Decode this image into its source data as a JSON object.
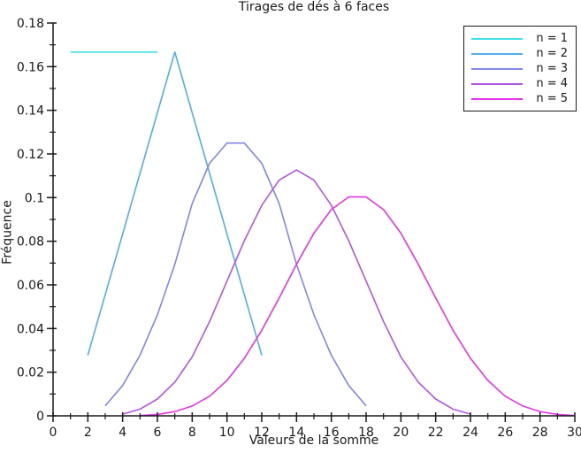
{
  "chart_data": {
    "type": "line",
    "title": "Tirages de dés à 6 faces",
    "xlabel": "Valeurs de la somme",
    "ylabel": "Fréquence",
    "xlim": [
      0,
      30
    ],
    "ylim": [
      0,
      0.18
    ],
    "grid": false,
    "legend_position": "top-right",
    "axis_color": "#1a1a1a",
    "x_tick_labels": [
      "0",
      "2",
      "4",
      "6",
      "8",
      "10",
      "12",
      "14",
      "16",
      "18",
      "20",
      "22",
      "24",
      "26",
      "28",
      "30"
    ],
    "x_minor_tick_step": 1,
    "y_tick_labels": [
      "0",
      "0.02",
      "0.04",
      "0.06",
      "0.08",
      "0.1",
      "0.12",
      "0.14",
      "0.16",
      "0.18"
    ],
    "y_minor_tick_step": 0.01,
    "series": [
      {
        "name": "n = 1",
        "color": "#40e2e6",
        "x_start": 1,
        "x_step": 1,
        "values": [
          0.16667,
          0.16667,
          0.16667,
          0.16667,
          0.16667,
          0.16667
        ]
      },
      {
        "name": "n = 2",
        "color": "#55aeec",
        "x_start": 2,
        "x_step": 1,
        "values": [
          0.02778,
          0.05556,
          0.08333,
          0.11111,
          0.13889,
          0.16667,
          0.13889,
          0.11111,
          0.08333,
          0.05556,
          0.02778
        ]
      },
      {
        "name": "n = 3",
        "color": "#8187e8",
        "x_start": 3,
        "x_step": 1,
        "values": [
          0.00463,
          0.01389,
          0.02778,
          0.0463,
          0.06944,
          0.09722,
          0.11574,
          0.125,
          0.125,
          0.11574,
          0.09722,
          0.06944,
          0.0463,
          0.02778,
          0.01389,
          0.00463
        ]
      },
      {
        "name": "n = 4",
        "color": "#b257e0",
        "x_start": 4,
        "x_step": 1,
        "values": [
          0.00077,
          0.00309,
          0.00772,
          0.01543,
          0.02701,
          0.04321,
          0.06173,
          0.08025,
          0.09645,
          0.10802,
          0.11265,
          0.10802,
          0.09645,
          0.08025,
          0.06173,
          0.04321,
          0.02701,
          0.01543,
          0.00772,
          0.00309,
          0.00077
        ]
      },
      {
        "name": "n = 5",
        "color": "#e435e4",
        "x_start": 5,
        "x_step": 1,
        "values": [
          0.00013,
          0.00064,
          0.00193,
          0.0045,
          0.009,
          0.0162,
          0.02636,
          0.03922,
          0.05401,
          0.06944,
          0.08372,
          0.09452,
          0.10031,
          0.10031,
          0.09452,
          0.08372,
          0.06944,
          0.05401,
          0.03922,
          0.02636,
          0.0162,
          0.009,
          0.0045,
          0.00193,
          0.00064,
          0.00013
        ]
      }
    ]
  }
}
